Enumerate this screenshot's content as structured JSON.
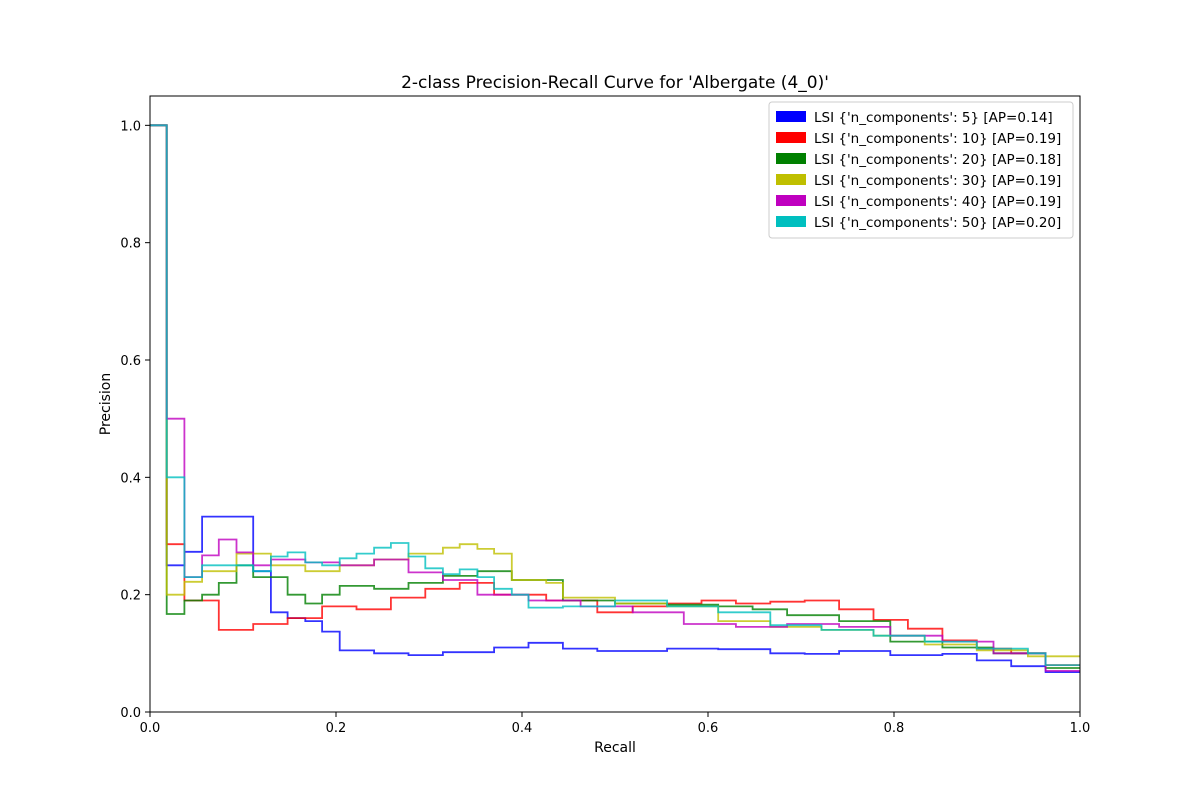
{
  "chart_data": {
    "type": "line",
    "title": "2-class Precision-Recall Curve for 'Albergate (4_0)'",
    "xlabel": "Recall",
    "ylabel": "Precision",
    "xlim": [
      0.0,
      1.0
    ],
    "ylim": [
      0.0,
      1.05
    ],
    "xticks": [
      "0.0",
      "0.2",
      "0.4",
      "0.6",
      "0.8",
      "1.0"
    ],
    "yticks": [
      "0.0",
      "0.2",
      "0.4",
      "0.6",
      "0.8",
      "1.0"
    ],
    "grid": false,
    "legend_position": "upper-right",
    "series": [
      {
        "name": "LSI {'n_components': 5} [AP=0.14]",
        "color": "#0000ff",
        "x": [
          0.0,
          0.018,
          0.018,
          0.037,
          0.037,
          0.056,
          0.056,
          0.093,
          0.093,
          0.111,
          0.111,
          0.13,
          0.13,
          0.148,
          0.148,
          0.167,
          0.167,
          0.185,
          0.185,
          0.204,
          0.204,
          0.241,
          0.241,
          0.278,
          0.278,
          0.315,
          0.315,
          0.37,
          0.37,
          0.407,
          0.407,
          0.444,
          0.444,
          0.481,
          0.481,
          0.556,
          0.556,
          0.611,
          0.611,
          0.667,
          0.667,
          0.704,
          0.704,
          0.741,
          0.741,
          0.796,
          0.796,
          0.852,
          0.852,
          0.889,
          0.889,
          0.926,
          0.926,
          0.963,
          0.963,
          1.0
        ],
        "y": [
          1.0,
          1.0,
          0.25,
          0.25,
          0.273,
          0.273,
          0.333,
          0.333,
          0.333,
          0.333,
          0.24,
          0.24,
          0.17,
          0.17,
          0.16,
          0.16,
          0.155,
          0.155,
          0.137,
          0.137,
          0.105,
          0.105,
          0.1,
          0.1,
          0.097,
          0.097,
          0.102,
          0.102,
          0.11,
          0.11,
          0.118,
          0.118,
          0.108,
          0.108,
          0.104,
          0.104,
          0.108,
          0.108,
          0.107,
          0.107,
          0.1,
          0.1,
          0.099,
          0.099,
          0.104,
          0.104,
          0.097,
          0.097,
          0.099,
          0.099,
          0.088,
          0.088,
          0.078,
          0.078,
          0.068,
          0.068
        ]
      },
      {
        "name": "LSI {'n_components': 10} [AP=0.19]",
        "color": "#ff0000",
        "x": [
          0.0,
          0.018,
          0.018,
          0.037,
          0.037,
          0.074,
          0.074,
          0.111,
          0.111,
          0.148,
          0.148,
          0.185,
          0.185,
          0.222,
          0.222,
          0.259,
          0.259,
          0.296,
          0.296,
          0.333,
          0.333,
          0.37,
          0.37,
          0.426,
          0.426,
          0.481,
          0.481,
          0.519,
          0.519,
          0.556,
          0.556,
          0.593,
          0.593,
          0.63,
          0.63,
          0.667,
          0.667,
          0.704,
          0.704,
          0.741,
          0.741,
          0.778,
          0.778,
          0.815,
          0.815,
          0.852,
          0.852,
          0.889,
          0.889,
          0.926,
          0.926,
          0.963,
          0.963,
          1.0
        ],
        "y": [
          1.0,
          1.0,
          0.286,
          0.286,
          0.19,
          0.19,
          0.14,
          0.14,
          0.15,
          0.15,
          0.16,
          0.16,
          0.18,
          0.18,
          0.175,
          0.175,
          0.195,
          0.195,
          0.21,
          0.21,
          0.22,
          0.22,
          0.2,
          0.2,
          0.19,
          0.19,
          0.17,
          0.17,
          0.18,
          0.18,
          0.185,
          0.185,
          0.19,
          0.19,
          0.185,
          0.185,
          0.188,
          0.188,
          0.19,
          0.19,
          0.175,
          0.175,
          0.157,
          0.157,
          0.142,
          0.142,
          0.122,
          0.122,
          0.108,
          0.108,
          0.1,
          0.1,
          0.08,
          0.08
        ]
      },
      {
        "name": "LSI {'n_components': 20} [AP=0.18]",
        "color": "#008000",
        "x": [
          0.0,
          0.018,
          0.018,
          0.037,
          0.037,
          0.056,
          0.056,
          0.074,
          0.074,
          0.093,
          0.093,
          0.111,
          0.111,
          0.148,
          0.148,
          0.167,
          0.167,
          0.185,
          0.185,
          0.204,
          0.204,
          0.241,
          0.241,
          0.278,
          0.278,
          0.315,
          0.315,
          0.352,
          0.352,
          0.389,
          0.389,
          0.444,
          0.444,
          0.5,
          0.5,
          0.556,
          0.556,
          0.611,
          0.611,
          0.648,
          0.648,
          0.685,
          0.685,
          0.741,
          0.741,
          0.796,
          0.796,
          0.852,
          0.852,
          0.907,
          0.907,
          0.963,
          0.963,
          1.0
        ],
        "y": [
          1.0,
          1.0,
          0.167,
          0.167,
          0.19,
          0.19,
          0.2,
          0.2,
          0.22,
          0.22,
          0.25,
          0.25,
          0.23,
          0.23,
          0.2,
          0.2,
          0.185,
          0.185,
          0.2,
          0.2,
          0.215,
          0.215,
          0.21,
          0.21,
          0.22,
          0.22,
          0.232,
          0.232,
          0.24,
          0.24,
          0.225,
          0.225,
          0.19,
          0.19,
          0.185,
          0.185,
          0.183,
          0.183,
          0.18,
          0.18,
          0.175,
          0.175,
          0.165,
          0.165,
          0.155,
          0.155,
          0.12,
          0.12,
          0.11,
          0.11,
          0.1,
          0.1,
          0.075,
          0.075
        ]
      },
      {
        "name": "LSI {'n_components': 30} [AP=0.19]",
        "color": "#bfbf00",
        "x": [
          0.0,
          0.018,
          0.018,
          0.037,
          0.037,
          0.056,
          0.056,
          0.093,
          0.093,
          0.13,
          0.13,
          0.167,
          0.167,
          0.204,
          0.204,
          0.241,
          0.241,
          0.278,
          0.278,
          0.315,
          0.315,
          0.333,
          0.333,
          0.352,
          0.352,
          0.37,
          0.37,
          0.389,
          0.389,
          0.426,
          0.426,
          0.444,
          0.444,
          0.5,
          0.5,
          0.556,
          0.556,
          0.611,
          0.611,
          0.667,
          0.667,
          0.722,
          0.722,
          0.778,
          0.778,
          0.833,
          0.833,
          0.889,
          0.889,
          0.944,
          0.944,
          1.0
        ],
        "y": [
          1.0,
          1.0,
          0.2,
          0.2,
          0.222,
          0.222,
          0.24,
          0.24,
          0.27,
          0.27,
          0.25,
          0.25,
          0.24,
          0.24,
          0.25,
          0.25,
          0.26,
          0.26,
          0.27,
          0.27,
          0.28,
          0.28,
          0.286,
          0.286,
          0.278,
          0.278,
          0.27,
          0.27,
          0.225,
          0.225,
          0.22,
          0.22,
          0.195,
          0.195,
          0.185,
          0.185,
          0.18,
          0.18,
          0.155,
          0.155,
          0.145,
          0.145,
          0.14,
          0.14,
          0.13,
          0.13,
          0.115,
          0.115,
          0.105,
          0.105,
          0.095,
          0.095
        ]
      },
      {
        "name": "LSI {'n_components': 40} [AP=0.19]",
        "color": "#bf00bf",
        "x": [
          0.0,
          0.018,
          0.018,
          0.037,
          0.037,
          0.056,
          0.056,
          0.074,
          0.074,
          0.093,
          0.093,
          0.111,
          0.111,
          0.13,
          0.13,
          0.167,
          0.167,
          0.204,
          0.204,
          0.241,
          0.241,
          0.278,
          0.278,
          0.315,
          0.315,
          0.352,
          0.352,
          0.407,
          0.407,
          0.463,
          0.463,
          0.519,
          0.519,
          0.574,
          0.574,
          0.63,
          0.63,
          0.685,
          0.685,
          0.741,
          0.741,
          0.796,
          0.796,
          0.852,
          0.852,
          0.907,
          0.907,
          0.963,
          0.963,
          1.0
        ],
        "y": [
          1.0,
          1.0,
          0.5,
          0.5,
          0.23,
          0.23,
          0.267,
          0.267,
          0.294,
          0.294,
          0.272,
          0.272,
          0.25,
          0.25,
          0.26,
          0.26,
          0.255,
          0.255,
          0.25,
          0.25,
          0.26,
          0.26,
          0.238,
          0.238,
          0.225,
          0.225,
          0.2,
          0.2,
          0.19,
          0.19,
          0.18,
          0.18,
          0.17,
          0.17,
          0.15,
          0.15,
          0.145,
          0.145,
          0.15,
          0.15,
          0.145,
          0.145,
          0.13,
          0.13,
          0.12,
          0.12,
          0.1,
          0.1,
          0.07,
          0.07
        ]
      },
      {
        "name": "LSI {'n_components': 50} [AP=0.20]",
        "color": "#00bfbf",
        "x": [
          0.0,
          0.018,
          0.018,
          0.037,
          0.037,
          0.056,
          0.056,
          0.111,
          0.111,
          0.13,
          0.13,
          0.148,
          0.148,
          0.167,
          0.167,
          0.185,
          0.185,
          0.204,
          0.204,
          0.222,
          0.222,
          0.241,
          0.241,
          0.259,
          0.259,
          0.278,
          0.278,
          0.296,
          0.296,
          0.315,
          0.315,
          0.333,
          0.333,
          0.352,
          0.352,
          0.37,
          0.37,
          0.389,
          0.389,
          0.407,
          0.407,
          0.444,
          0.444,
          0.5,
          0.5,
          0.556,
          0.556,
          0.611,
          0.611,
          0.667,
          0.667,
          0.722,
          0.722,
          0.778,
          0.778,
          0.833,
          0.833,
          0.889,
          0.889,
          0.944,
          0.944,
          0.963,
          0.963,
          1.0
        ],
        "y": [
          1.0,
          1.0,
          0.4,
          0.4,
          0.23,
          0.23,
          0.25,
          0.25,
          0.24,
          0.24,
          0.265,
          0.265,
          0.272,
          0.272,
          0.255,
          0.255,
          0.25,
          0.25,
          0.262,
          0.262,
          0.27,
          0.27,
          0.28,
          0.28,
          0.288,
          0.288,
          0.265,
          0.265,
          0.245,
          0.245,
          0.235,
          0.235,
          0.243,
          0.243,
          0.23,
          0.23,
          0.21,
          0.21,
          0.2,
          0.2,
          0.178,
          0.178,
          0.18,
          0.18,
          0.19,
          0.19,
          0.18,
          0.18,
          0.17,
          0.17,
          0.148,
          0.148,
          0.14,
          0.14,
          0.13,
          0.13,
          0.12,
          0.12,
          0.108,
          0.108,
          0.1,
          0.1,
          0.08,
          0.08
        ]
      }
    ]
  }
}
